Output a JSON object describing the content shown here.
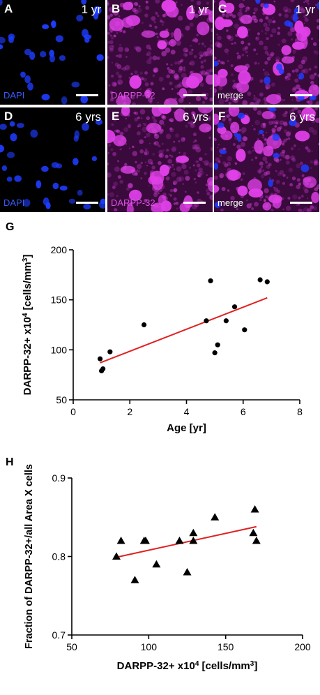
{
  "panels": [
    {
      "letter": "A",
      "age": "1 yr",
      "stain": "DAPI",
      "kind": "dapi",
      "seed": 11
    },
    {
      "letter": "B",
      "age": "1 yr",
      "stain": "DARPP-32",
      "kind": "darpp",
      "seed": 23
    },
    {
      "letter": "C",
      "age": "1 yr",
      "stain": "merge",
      "kind": "merge",
      "seed": 37
    },
    {
      "letter": "D",
      "age": "6 yrs",
      "stain": "DAPI",
      "kind": "dapi",
      "seed": 41
    },
    {
      "letter": "E",
      "age": "6 yrs",
      "stain": "DARPP-32",
      "kind": "darpp",
      "seed": 53
    },
    {
      "letter": "F",
      "age": "6 yrs",
      "stain": "merge",
      "kind": "merge",
      "seed": 67
    }
  ],
  "colors": {
    "dapi": "#1e3cff",
    "darpp": "#e040e8",
    "fit_line": "#e02020",
    "points": "#000000"
  },
  "chart_data": [
    {
      "panel_letter": "G",
      "type": "scatter",
      "marker": "circle",
      "xlabel": "Age [yr]",
      "ylabel": "DARPP-32+ x10⁴ [cells/mm³]",
      "xlim": [
        0,
        8
      ],
      "ylim": [
        50,
        200
      ],
      "xticks": [
        0,
        2,
        4,
        6,
        8
      ],
      "yticks": [
        50,
        100,
        150,
        200
      ],
      "points": [
        {
          "x": 0.95,
          "y": 91
        },
        {
          "x": 1.0,
          "y": 79
        },
        {
          "x": 1.05,
          "y": 81
        },
        {
          "x": 1.3,
          "y": 98
        },
        {
          "x": 2.5,
          "y": 125
        },
        {
          "x": 4.7,
          "y": 129
        },
        {
          "x": 4.85,
          "y": 169
        },
        {
          "x": 5.0,
          "y": 97
        },
        {
          "x": 5.1,
          "y": 105
        },
        {
          "x": 5.4,
          "y": 129
        },
        {
          "x": 5.7,
          "y": 143
        },
        {
          "x": 6.05,
          "y": 120
        },
        {
          "x": 6.6,
          "y": 170
        },
        {
          "x": 6.85,
          "y": 168
        }
      ],
      "fit": {
        "x": [
          0.95,
          6.85
        ],
        "y": [
          87,
          152
        ]
      }
    },
    {
      "panel_letter": "H",
      "type": "scatter",
      "marker": "triangle",
      "xlabel": "DARPP-32+ x10⁴ [cells/mm³]",
      "ylabel": "Fraction of DARPP-32+/all Area X cells",
      "xlim": [
        50,
        200
      ],
      "ylim": [
        0.7,
        0.9
      ],
      "xticks": [
        50,
        100,
        150,
        200
      ],
      "yticks": [
        0.7,
        0.8,
        0.9
      ],
      "points": [
        {
          "x": 79,
          "y": 0.8
        },
        {
          "x": 82,
          "y": 0.82
        },
        {
          "x": 91,
          "y": 0.77
        },
        {
          "x": 97,
          "y": 0.82
        },
        {
          "x": 98,
          "y": 0.82
        },
        {
          "x": 105,
          "y": 0.79
        },
        {
          "x": 120,
          "y": 0.82
        },
        {
          "x": 125,
          "y": 0.78
        },
        {
          "x": 129,
          "y": 0.83
        },
        {
          "x": 129,
          "y": 0.82
        },
        {
          "x": 143,
          "y": 0.85
        },
        {
          "x": 168,
          "y": 0.83
        },
        {
          "x": 169,
          "y": 0.86
        },
        {
          "x": 170,
          "y": 0.82
        }
      ],
      "fit": {
        "x": [
          79,
          170
        ],
        "y": [
          0.799,
          0.838
        ]
      }
    }
  ]
}
